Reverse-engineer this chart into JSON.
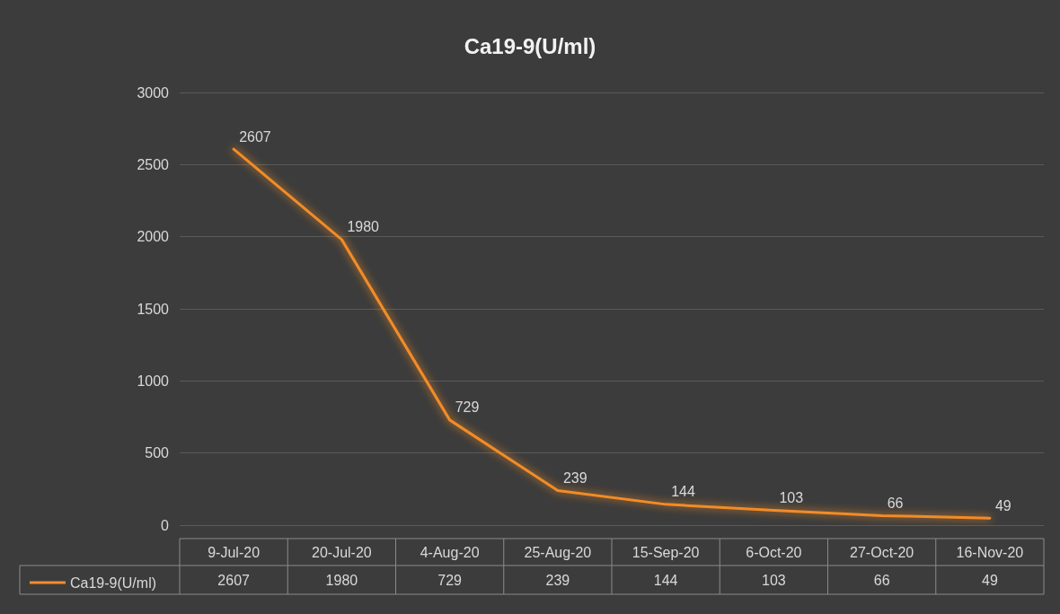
{
  "chart_data": {
    "type": "line",
    "title": "Ca19-9(U/ml)",
    "categories": [
      "9-Jul-20",
      "20-Jul-20",
      "4-Aug-20",
      "25-Aug-20",
      "15-Sep-20",
      "6-Oct-20",
      "27-Oct-20",
      "16-Nov-20"
    ],
    "series": [
      {
        "name": "Ca19-9(U/ml)",
        "color": "#f28c28",
        "values": [
          2607,
          1980,
          729,
          239,
          144,
          103,
          66,
          49
        ]
      }
    ],
    "annotations": [
      {
        "text": "2607",
        "x": "9-Jul-20",
        "y": 2607
      },
      {
        "text": "1980",
        "x": "20-Jul-20",
        "y": 1980
      },
      {
        "text": "729",
        "x": "4-Aug-20",
        "y": 729
      },
      {
        "text": "239",
        "x": "25-Aug-20",
        "y": 239
      },
      {
        "text": "144",
        "x": "15-Sep-20",
        "y": 144
      },
      {
        "text": "103",
        "x": "6-Oct-20",
        "y": 103
      },
      {
        "text": "66",
        "x": "27-Oct-20",
        "y": 66
      },
      {
        "text": "49",
        "x": "16-Nov-20",
        "y": 49
      }
    ],
    "ylim": [
      0,
      3000
    ],
    "yticks": [
      0,
      500,
      1000,
      1500,
      2000,
      2500,
      3000
    ],
    "grid": "y",
    "legend": "bottom left",
    "marker": "none",
    "line_style": "solid",
    "data_labels": true
  }
}
